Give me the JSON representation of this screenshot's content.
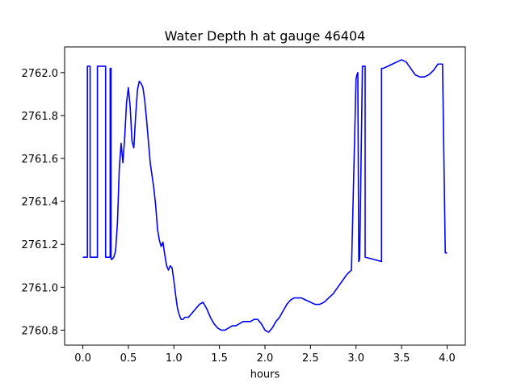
{
  "chart_data": {
    "type": "line",
    "title": "Water Depth h at gauge 46404",
    "xlabel": "hours",
    "ylabel": "",
    "xlim": [
      -0.2,
      4.2
    ],
    "ylim": [
      2760.73,
      2762.12
    ],
    "xticks": [
      0.0,
      0.5,
      1.0,
      1.5,
      2.0,
      2.5,
      3.0,
      3.5,
      4.0
    ],
    "xtick_labels": [
      "0.0",
      "0.5",
      "1.0",
      "1.5",
      "2.0",
      "2.5",
      "3.0",
      "3.5",
      "4.0"
    ],
    "yticks": [
      2760.8,
      2761.0,
      2761.2,
      2761.4,
      2761.6,
      2761.8,
      2762.0
    ],
    "ytick_labels": [
      "2760.8",
      "2761.0",
      "2761.2",
      "2761.4",
      "2761.6",
      "2761.8",
      "2762.0"
    ],
    "grid": false,
    "series": [
      {
        "color": "#0000ff",
        "x": [
          0.0,
          0.05,
          0.05,
          0.08,
          0.08,
          0.16,
          0.16,
          0.25,
          0.25,
          0.3,
          0.3,
          0.31,
          0.31,
          0.32,
          0.34,
          0.36,
          0.38,
          0.4,
          0.42,
          0.44,
          0.46,
          0.48,
          0.5,
          0.52,
          0.54,
          0.56,
          0.58,
          0.6,
          0.62,
          0.64,
          0.66,
          0.68,
          0.7,
          0.72,
          0.74,
          0.76,
          0.78,
          0.8,
          0.82,
          0.84,
          0.86,
          0.88,
          0.9,
          0.92,
          0.94,
          0.96,
          0.98,
          1.0,
          1.02,
          1.04,
          1.06,
          1.08,
          1.1,
          1.12,
          1.14,
          1.16,
          1.18,
          1.2,
          1.24,
          1.28,
          1.32,
          1.36,
          1.4,
          1.44,
          1.48,
          1.52,
          1.56,
          1.6,
          1.64,
          1.68,
          1.72,
          1.76,
          1.8,
          1.84,
          1.88,
          1.92,
          1.96,
          2.0,
          2.04,
          2.08,
          2.12,
          2.16,
          2.2,
          2.24,
          2.28,
          2.32,
          2.36,
          2.4,
          2.45,
          2.5,
          2.55,
          2.6,
          2.65,
          2.7,
          2.75,
          2.8,
          2.85,
          2.9,
          2.95,
          3.0,
          3.0,
          3.01,
          3.02,
          3.03,
          3.03,
          3.04,
          3.07,
          3.07,
          3.1,
          3.1,
          3.28,
          3.28,
          3.3,
          3.35,
          3.4,
          3.45,
          3.5,
          3.55,
          3.6,
          3.65,
          3.7,
          3.75,
          3.8,
          3.85,
          3.9,
          3.95,
          3.98,
          3.99,
          4.0
        ],
        "y": [
          2761.14,
          2761.14,
          2762.03,
          2762.03,
          2761.14,
          2761.14,
          2762.03,
          2762.03,
          2761.14,
          2761.14,
          2762.02,
          2762.02,
          2761.13,
          2761.13,
          2761.14,
          2761.17,
          2761.3,
          2761.55,
          2761.67,
          2761.58,
          2761.7,
          2761.86,
          2761.93,
          2761.84,
          2761.68,
          2761.65,
          2761.8,
          2761.92,
          2761.96,
          2761.95,
          2761.93,
          2761.87,
          2761.78,
          2761.68,
          2761.58,
          2761.52,
          2761.46,
          2761.38,
          2761.27,
          2761.22,
          2761.19,
          2761.21,
          2761.15,
          2761.1,
          2761.08,
          2761.1,
          2761.09,
          2761.03,
          2760.96,
          2760.9,
          2760.87,
          2760.85,
          2760.85,
          2760.86,
          2760.86,
          2760.86,
          2760.87,
          2760.88,
          2760.9,
          2760.92,
          2760.93,
          2760.9,
          2760.86,
          2760.83,
          2760.81,
          2760.8,
          2760.8,
          2760.81,
          2760.82,
          2760.82,
          2760.83,
          2760.84,
          2760.84,
          2760.84,
          2760.85,
          2760.85,
          2760.83,
          2760.8,
          2760.79,
          2760.81,
          2760.84,
          2760.86,
          2760.89,
          2760.92,
          2760.94,
          2760.95,
          2760.95,
          2760.95,
          2760.94,
          2760.93,
          2760.92,
          2760.92,
          2760.93,
          2760.95,
          2760.97,
          2761.0,
          2761.03,
          2761.06,
          2761.08,
          2761.97,
          2761.97,
          2761.99,
          2762.0,
          2761.12,
          2761.12,
          2761.13,
          2762.02,
          2762.03,
          2762.03,
          2761.14,
          2761.12,
          2762.02,
          2762.02,
          2762.03,
          2762.04,
          2762.05,
          2762.06,
          2762.05,
          2762.02,
          2761.99,
          2761.98,
          2761.98,
          2761.99,
          2762.01,
          2762.04,
          2762.04,
          2761.16,
          2761.16,
          2761.16
        ]
      }
    ]
  }
}
